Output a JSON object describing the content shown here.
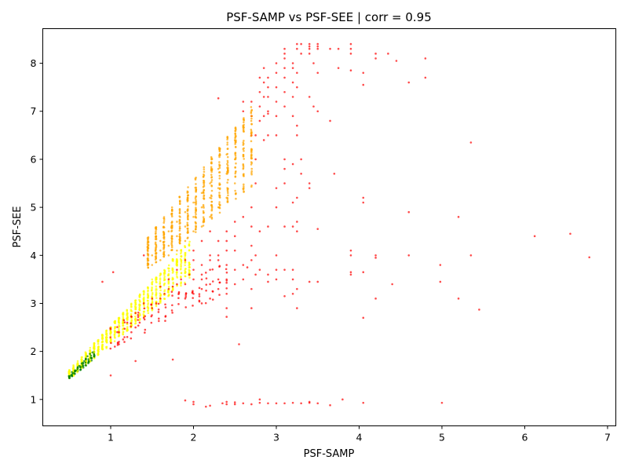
{
  "chart_data": {
    "type": "scatter",
    "title": "PSF-SAMP vs PSF-SEE | corr = 0.95",
    "xlabel": "PSF-SAMP",
    "ylabel": "PSF-SEE",
    "xlim": [
      0.18,
      7.1
    ],
    "ylim": [
      0.45,
      8.72
    ],
    "xticks": [
      1,
      2,
      3,
      4,
      5,
      6,
      7
    ],
    "yticks": [
      1,
      2,
      3,
      4,
      5,
      6,
      7,
      8
    ],
    "grid": false,
    "legend": "none",
    "colors": {
      "red": "#ff0000",
      "orange": "#ffa500",
      "yellow": "#ffff00",
      "green": "#008000"
    },
    "series": [
      {
        "color": "red",
        "points": [
          [
            2.0,
            3.2
          ],
          [
            2.0,
            3.5
          ],
          [
            2.0,
            3.7
          ],
          [
            2.0,
            3.9
          ],
          [
            2.0,
            0.95
          ],
          [
            2.0,
            0.9
          ],
          [
            1.9,
            3.1
          ],
          [
            1.9,
            3.4
          ],
          [
            1.9,
            0.98
          ],
          [
            2.1,
            3.0
          ],
          [
            2.1,
            3.3
          ],
          [
            2.1,
            3.5
          ],
          [
            2.1,
            3.8
          ],
          [
            2.15,
            0.85
          ],
          [
            2.2,
            0.87
          ],
          [
            2.2,
            3.1
          ],
          [
            2.2,
            3.4
          ],
          [
            2.2,
            3.7
          ],
          [
            2.2,
            4.0
          ],
          [
            2.3,
            3.3
          ],
          [
            2.3,
            3.5
          ],
          [
            2.3,
            3.9
          ],
          [
            2.3,
            4.3
          ],
          [
            2.3,
            7.27
          ],
          [
            2.35,
            0.92
          ],
          [
            2.4,
            2.9
          ],
          [
            2.4,
            3.2
          ],
          [
            2.4,
            3.5
          ],
          [
            2.4,
            3.8
          ],
          [
            2.4,
            4.1
          ],
          [
            2.4,
            4.5
          ],
          [
            2.4,
            2.72
          ],
          [
            2.4,
            0.9
          ],
          [
            2.4,
            0.95
          ],
          [
            2.5,
            3.4
          ],
          [
            2.5,
            3.7
          ],
          [
            2.5,
            4.1
          ],
          [
            2.5,
            4.4
          ],
          [
            2.5,
            0.9
          ],
          [
            2.5,
            0.94
          ],
          [
            2.55,
            2.15
          ],
          [
            2.6,
            3.5
          ],
          [
            2.6,
            3.8
          ],
          [
            2.6,
            7.0
          ],
          [
            2.6,
            7.2
          ],
          [
            2.6,
            0.92
          ],
          [
            2.65,
            3.75
          ],
          [
            2.7,
            2.9
          ],
          [
            2.7,
            3.3
          ],
          [
            2.7,
            3.9
          ],
          [
            2.7,
            4.2
          ],
          [
            2.7,
            4.6
          ],
          [
            2.7,
            5.0
          ],
          [
            2.7,
            6.5
          ],
          [
            2.7,
            6.9
          ],
          [
            2.7,
            7.2
          ],
          [
            2.7,
            0.9
          ],
          [
            2.75,
            3.6
          ],
          [
            2.75,
            4.0
          ],
          [
            2.75,
            5.5
          ],
          [
            2.75,
            6.0
          ],
          [
            2.75,
            6.5
          ],
          [
            2.8,
            6.8
          ],
          [
            2.8,
            7.1
          ],
          [
            2.8,
            7.4
          ],
          [
            2.8,
            7.7
          ],
          [
            2.8,
            0.93
          ],
          [
            2.8,
            1.0
          ],
          [
            2.8,
            3.7
          ],
          [
            2.8,
            4.5
          ],
          [
            2.85,
            7.3
          ],
          [
            2.85,
            7.6
          ],
          [
            2.85,
            7.9
          ],
          [
            2.85,
            6.9
          ],
          [
            2.85,
            6.4
          ],
          [
            2.9,
            7.0
          ],
          [
            2.9,
            7.3
          ],
          [
            2.9,
            7.5
          ],
          [
            2.9,
            7.7
          ],
          [
            2.9,
            4.6
          ],
          [
            2.9,
            3.45
          ],
          [
            2.9,
            3.6
          ],
          [
            2.9,
            0.92
          ],
          [
            2.9,
            6.95
          ],
          [
            2.9,
            6.5
          ],
          [
            3.0,
            7.5
          ],
          [
            3.0,
            7.8
          ],
          [
            3.0,
            8.0
          ],
          [
            3.0,
            7.2
          ],
          [
            3.0,
            6.9
          ],
          [
            3.0,
            6.5
          ],
          [
            3.0,
            5.4
          ],
          [
            3.0,
            5.0
          ],
          [
            3.0,
            4.0
          ],
          [
            3.0,
            3.7
          ],
          [
            3.0,
            3.5
          ],
          [
            3.0,
            0.92
          ],
          [
            3.1,
            8.3
          ],
          [
            3.1,
            8.2
          ],
          [
            3.1,
            8.1
          ],
          [
            3.1,
            7.9
          ],
          [
            3.1,
            7.7
          ],
          [
            3.1,
            7.4
          ],
          [
            3.1,
            7.1
          ],
          [
            3.1,
            6.0
          ],
          [
            3.1,
            5.8
          ],
          [
            3.1,
            5.5
          ],
          [
            3.1,
            4.6
          ],
          [
            3.1,
            3.7
          ],
          [
            3.1,
            3.15
          ],
          [
            3.1,
            0.92
          ],
          [
            3.2,
            8.0
          ],
          [
            3.2,
            7.9
          ],
          [
            3.2,
            7.6
          ],
          [
            3.2,
            7.3
          ],
          [
            3.2,
            6.9
          ],
          [
            3.2,
            5.9
          ],
          [
            3.2,
            5.1
          ],
          [
            3.2,
            4.6
          ],
          [
            3.2,
            3.7
          ],
          [
            3.2,
            3.5
          ],
          [
            3.2,
            3.2
          ],
          [
            3.2,
            0.93
          ],
          [
            3.25,
            8.3
          ],
          [
            3.25,
            8.4
          ],
          [
            3.25,
            7.8
          ],
          [
            3.25,
            7.5
          ],
          [
            3.25,
            6.7
          ],
          [
            3.25,
            6.5
          ],
          [
            3.25,
            5.2
          ],
          [
            3.25,
            4.7
          ],
          [
            3.25,
            4.5
          ],
          [
            3.25,
            3.3
          ],
          [
            3.25,
            2.9
          ],
          [
            3.3,
            8.4
          ],
          [
            3.3,
            8.2
          ],
          [
            3.3,
            6.0
          ],
          [
            3.3,
            5.7
          ],
          [
            3.3,
            0.92
          ],
          [
            3.4,
            8.35
          ],
          [
            3.4,
            8.3
          ],
          [
            3.4,
            8.4
          ],
          [
            3.4,
            8.2
          ],
          [
            3.4,
            7.3
          ],
          [
            3.4,
            5.5
          ],
          [
            3.4,
            5.4
          ],
          [
            3.4,
            3.45
          ],
          [
            3.4,
            0.95
          ],
          [
            3.4,
            0.93
          ],
          [
            3.45,
            7.1
          ],
          [
            3.45,
            8.0
          ],
          [
            3.5,
            8.35
          ],
          [
            3.5,
            8.4
          ],
          [
            3.5,
            8.3
          ],
          [
            3.5,
            7.8
          ],
          [
            3.5,
            7.0
          ],
          [
            3.5,
            4.55
          ],
          [
            3.5,
            3.45
          ],
          [
            3.5,
            0.92
          ],
          [
            3.65,
            8.3
          ],
          [
            3.65,
            6.8
          ],
          [
            3.65,
            0.88
          ],
          [
            3.7,
            5.7
          ],
          [
            3.75,
            8.3
          ],
          [
            3.75,
            7.9
          ],
          [
            3.8,
            1.0
          ],
          [
            3.9,
            8.4
          ],
          [
            3.9,
            8.3
          ],
          [
            3.9,
            8.2
          ],
          [
            3.9,
            7.85
          ],
          [
            3.9,
            4.1
          ],
          [
            3.9,
            4.0
          ],
          [
            3.9,
            3.6
          ],
          [
            3.9,
            3.65
          ],
          [
            4.05,
            7.8
          ],
          [
            4.05,
            7.55
          ],
          [
            4.05,
            5.2
          ],
          [
            4.05,
            5.1
          ],
          [
            4.05,
            3.65
          ],
          [
            4.05,
            2.7
          ],
          [
            4.05,
            0.93
          ],
          [
            4.2,
            8.2
          ],
          [
            4.2,
            8.1
          ],
          [
            4.2,
            4.0
          ],
          [
            4.2,
            3.95
          ],
          [
            4.2,
            3.1
          ],
          [
            4.35,
            8.2
          ],
          [
            4.4,
            3.4
          ],
          [
            4.45,
            8.05
          ],
          [
            4.6,
            7.6
          ],
          [
            4.6,
            4.9
          ],
          [
            4.6,
            4.0
          ],
          [
            4.8,
            8.1
          ],
          [
            4.8,
            7.7
          ],
          [
            4.98,
            3.8
          ],
          [
            4.98,
            3.45
          ],
          [
            5.0,
            0.93
          ],
          [
            5.2,
            4.8
          ],
          [
            5.2,
            3.1
          ],
          [
            5.35,
            6.35
          ],
          [
            5.35,
            4.0
          ],
          [
            5.45,
            2.87
          ],
          [
            6.12,
            4.4
          ],
          [
            6.55,
            4.45
          ],
          [
            6.78,
            3.96
          ],
          [
            1.0,
            1.5
          ],
          [
            1.3,
            1.8
          ],
          [
            1.75,
            1.83
          ],
          [
            0.9,
            3.45
          ],
          [
            1.03,
            3.65
          ],
          [
            1.4,
            4.0
          ],
          [
            1.05,
            2.1
          ],
          [
            1.1,
            2.15
          ],
          [
            1.1,
            2.2
          ],
          [
            1.15,
            2.25
          ],
          [
            1.2,
            2.3
          ],
          [
            1.25,
            2.4
          ],
          [
            1.3,
            2.5
          ],
          [
            1.35,
            2.6
          ],
          [
            1.4,
            2.7
          ],
          [
            1.5,
            2.9
          ],
          [
            1.55,
            3.0
          ],
          [
            1.6,
            3.1
          ],
          [
            1.65,
            3.2
          ],
          [
            1.7,
            3.3
          ],
          [
            1.75,
            3.35
          ],
          [
            1.8,
            3.4
          ],
          [
            1.85,
            3.5
          ],
          [
            1.95,
            3.6
          ],
          [
            1.1,
            2.4
          ],
          [
            1.2,
            2.6
          ],
          [
            1.3,
            2.8
          ],
          [
            1.4,
            3.0
          ],
          [
            1.5,
            3.1
          ],
          [
            1.6,
            3.35
          ],
          [
            1.7,
            3.5
          ],
          [
            1.8,
            3.7
          ],
          [
            1.9,
            3.9
          ],
          [
            2.0,
            4.1
          ],
          [
            2.1,
            4.3
          ],
          [
            2.2,
            4.5
          ],
          [
            2.1,
            3.6
          ],
          [
            2.2,
            3.9
          ],
          [
            2.3,
            4.0
          ],
          [
            2.4,
            4.3
          ],
          [
            2.5,
            4.7
          ],
          [
            2.6,
            4.8
          ]
        ]
      },
      {
        "color": "orange",
        "points": [
          [
            1.5,
            4.0
          ],
          [
            1.5,
            3.8
          ],
          [
            1.6,
            4.3
          ],
          [
            1.6,
            4.1
          ],
          [
            1.6,
            3.9
          ],
          [
            1.7,
            4.5
          ],
          [
            1.7,
            4.2
          ],
          [
            1.7,
            4.0
          ],
          [
            1.8,
            4.7
          ],
          [
            1.8,
            4.4
          ],
          [
            1.8,
            4.1
          ],
          [
            1.9,
            4.9
          ],
          [
            1.9,
            4.6
          ],
          [
            1.9,
            4.3
          ],
          [
            2.0,
            5.1
          ],
          [
            2.0,
            4.8
          ],
          [
            2.0,
            4.5
          ],
          [
            2.1,
            5.3
          ],
          [
            2.1,
            5.0
          ],
          [
            2.1,
            4.6
          ],
          [
            2.2,
            5.5
          ],
          [
            2.2,
            5.2
          ],
          [
            2.2,
            4.8
          ],
          [
            2.3,
            5.8
          ],
          [
            2.3,
            5.4
          ],
          [
            2.3,
            5.0
          ],
          [
            2.4,
            6.1
          ],
          [
            2.4,
            5.7
          ],
          [
            2.4,
            5.2
          ],
          [
            2.5,
            6.4
          ],
          [
            2.5,
            6.0
          ],
          [
            2.5,
            5.5
          ],
          [
            2.6,
            6.7
          ],
          [
            2.6,
            6.3
          ],
          [
            2.6,
            5.8
          ],
          [
            2.7,
            6.9
          ],
          [
            2.7,
            6.5
          ]
        ]
      },
      {
        "color": "yellow",
        "points": [
          [
            0.6,
            1.6
          ],
          [
            0.7,
            1.8
          ],
          [
            0.8,
            2.0
          ],
          [
            0.9,
            2.2
          ],
          [
            1.0,
            2.4
          ],
          [
            1.1,
            2.6
          ],
          [
            1.2,
            2.8
          ],
          [
            1.3,
            3.0
          ],
          [
            1.4,
            3.2
          ],
          [
            1.5,
            3.5
          ]
        ]
      },
      {
        "color": "green",
        "points": [
          [
            0.5,
            1.45
          ],
          [
            0.52,
            1.5
          ],
          [
            0.55,
            1.55
          ],
          [
            0.58,
            1.6
          ],
          [
            0.6,
            1.65
          ],
          [
            0.62,
            1.7
          ],
          [
            0.65,
            1.75
          ],
          [
            0.68,
            1.8
          ],
          [
            0.7,
            1.85
          ],
          [
            0.72,
            1.9
          ],
          [
            0.75,
            1.95
          ],
          [
            0.78,
            1.98
          ]
        ]
      }
    ],
    "bands": [
      {
        "color": "yellow",
        "x_start": 0.5,
        "x_end": 1.95,
        "y_lo_start": 1.42,
        "y_lo_end": 3.5,
        "y_hi_start": 1.62,
        "y_hi_end": 4.3,
        "columns": 30,
        "points_per_column": 26
      },
      {
        "color": "orange",
        "x_start": 1.45,
        "x_end": 2.7,
        "y_lo_start": 3.7,
        "y_lo_end": 5.4,
        "y_hi_start": 4.4,
        "y_hi_end": 7.1,
        "columns": 14,
        "points_per_column": 40
      },
      {
        "color": "red",
        "x_start": 1.0,
        "x_end": 2.4,
        "y_lo_start": 2.05,
        "y_lo_end": 3.2,
        "y_hi_start": 2.5,
        "y_hi_end": 3.9,
        "columns": 18,
        "points_per_column": 5
      },
      {
        "color": "green",
        "x_start": 0.5,
        "x_end": 0.8,
        "y_lo_start": 1.44,
        "y_lo_end": 1.8,
        "y_hi_start": 1.52,
        "y_hi_end": 2.0,
        "columns": 10,
        "points_per_column": 6
      }
    ]
  }
}
